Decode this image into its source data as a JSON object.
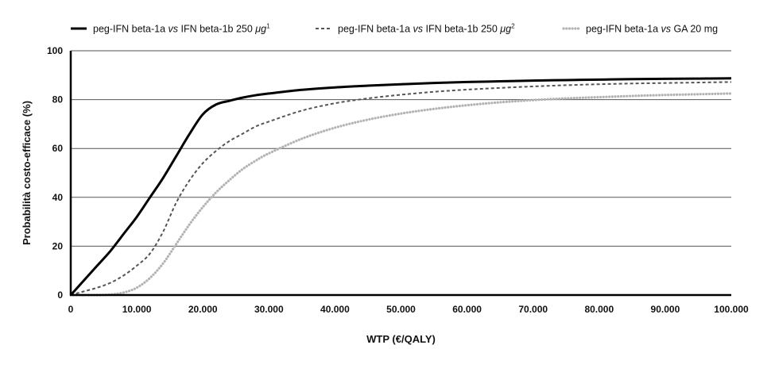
{
  "chart_data": {
    "type": "line",
    "title": "",
    "xlabel": "WTP (€/QALY)",
    "ylabel": "Probabilità costo-efficace (%)",
    "xlim": [
      0,
      100000
    ],
    "ylim": [
      0,
      100
    ],
    "x_ticks": [
      "0",
      "10.000",
      "20.000",
      "30.000",
      "40.000",
      "50.000",
      "60.000",
      "70.000",
      "80.000",
      "90.000",
      "100.000"
    ],
    "y_ticks": [
      "0",
      "20",
      "40",
      "60",
      "80",
      "100"
    ],
    "grid": "horizontal",
    "legend_position": "top",
    "series": [
      {
        "legend_prefix": "peg-IFN beta-1a ",
        "legend_italic": "vs",
        "legend_main": " IFN beta-1b 250 ",
        "legend_unit": "μg",
        "legend_sup": "1",
        "style": "solid",
        "color": "#000000",
        "x": [
          0,
          2000,
          4000,
          6000,
          8000,
          10000,
          12000,
          14000,
          16000,
          18000,
          20000,
          22000,
          24000,
          26000,
          28000,
          30000,
          35000,
          40000,
          45000,
          50000,
          55000,
          60000,
          65000,
          70000,
          75000,
          80000,
          85000,
          90000,
          95000,
          100000
        ],
        "values": [
          0,
          6,
          12,
          18,
          25,
          32,
          40,
          48,
          57,
          66,
          74,
          78,
          79.5,
          80.8,
          81.8,
          82.5,
          84,
          85,
          85.7,
          86.3,
          86.8,
          87.2,
          87.5,
          87.8,
          88,
          88.2,
          88.4,
          88.5,
          88.6,
          88.7
        ]
      },
      {
        "legend_prefix": "peg-IFN beta-1a ",
        "legend_italic": "vs",
        "legend_main": " IFN beta-1b 250 ",
        "legend_unit": "μg",
        "legend_sup": "2",
        "style": "dashed",
        "color": "#555555",
        "x": [
          0,
          2000,
          4000,
          6000,
          8000,
          10000,
          12000,
          14000,
          16000,
          18000,
          20000,
          22000,
          24000,
          26000,
          28000,
          30000,
          35000,
          40000,
          45000,
          50000,
          55000,
          60000,
          65000,
          70000,
          75000,
          80000,
          85000,
          90000,
          95000,
          100000
        ],
        "values": [
          0,
          1.5,
          3,
          5,
          8,
          12,
          17,
          26,
          38,
          47,
          54,
          59,
          63,
          66,
          69,
          71,
          75.5,
          78.5,
          80.5,
          82,
          83.2,
          84.1,
          84.8,
          85.4,
          85.9,
          86.3,
          86.6,
          86.8,
          87,
          87.2
        ]
      },
      {
        "legend_prefix": "peg-IFN beta-1a ",
        "legend_italic": "vs",
        "legend_main": " GA 20 mg",
        "legend_unit": "",
        "legend_sup": "",
        "style": "dotted",
        "color": "#b3b3b3",
        "x": [
          0,
          2000,
          4000,
          6000,
          8000,
          10000,
          12000,
          14000,
          16000,
          18000,
          20000,
          22000,
          24000,
          26000,
          28000,
          30000,
          35000,
          40000,
          45000,
          50000,
          55000,
          60000,
          65000,
          70000,
          75000,
          80000,
          85000,
          90000,
          95000,
          100000
        ],
        "values": [
          0,
          0,
          0,
          0.2,
          1,
          3,
          7,
          13,
          21,
          29,
          36,
          42,
          47,
          51.5,
          55,
          58,
          64,
          68.5,
          71.8,
          74.3,
          76.2,
          77.7,
          78.9,
          79.8,
          80.5,
          81,
          81.5,
          81.9,
          82.2,
          82.5
        ]
      }
    ]
  }
}
